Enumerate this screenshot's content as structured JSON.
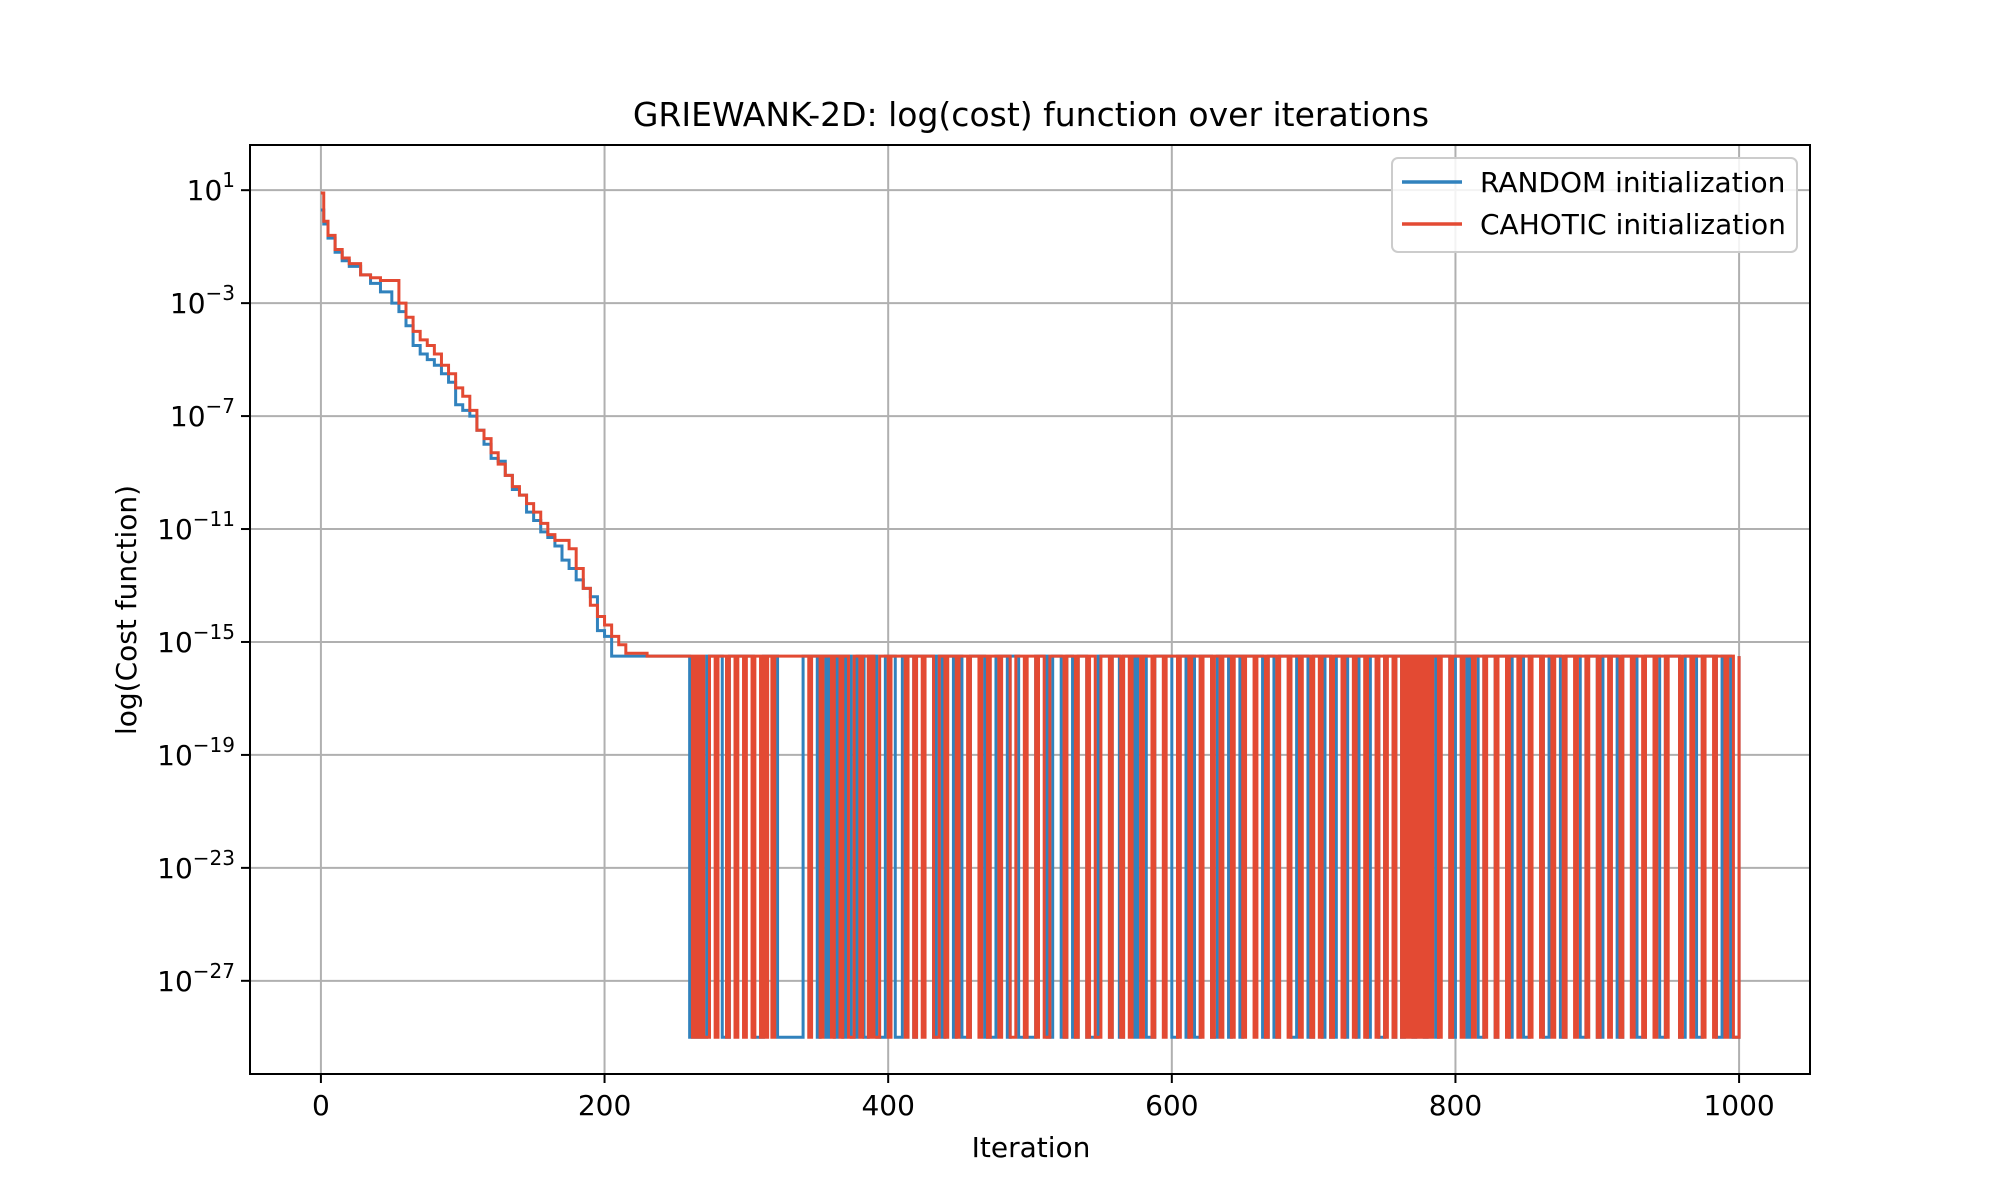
{
  "chart_data": {
    "type": "line",
    "title": "GRIEWANK-2D: log(cost) function over iterations",
    "xlabel": "Iteration",
    "ylabel": "log(Cost function)",
    "xlim": [
      -50,
      1050
    ],
    "ylim_log10": [
      -30.3,
      2.6
    ],
    "yscale": "log",
    "xticks": [
      0,
      200,
      400,
      600,
      800,
      1000
    ],
    "xtick_labels": [
      "0",
      "200",
      "400",
      "600",
      "800",
      "1000"
    ],
    "yticks_exp": [
      1,
      -3,
      -7,
      -11,
      -15,
      -19,
      -23,
      -27
    ],
    "ytick_base": "10",
    "ytick_exponents": [
      "1",
      "−3",
      "−7",
      "−11",
      "−15",
      "−19",
      "−23",
      "−27"
    ],
    "grid": true,
    "legend_position": "top-right",
    "series": [
      {
        "name": "RANDOM initialization",
        "color": "#3182bd",
        "step_values_log10": {
          "x": [
            0,
            2,
            5,
            10,
            15,
            20,
            28,
            35,
            42,
            50,
            55,
            60,
            65,
            70,
            75,
            80,
            85,
            90,
            95,
            100,
            105,
            110,
            115,
            120,
            125,
            130,
            135,
            140,
            145,
            150,
            155,
            160,
            165,
            170,
            175,
            180,
            185,
            190,
            195,
            200,
            205,
            210,
            215,
            220,
            225,
            230,
            235,
            240,
            250,
            258
          ],
          "y": [
            0.3,
            -0.2,
            -0.7,
            -1.2,
            -1.5,
            -1.7,
            -2.0,
            -2.3,
            -2.6,
            -3.0,
            -3.3,
            -3.8,
            -4.5,
            -4.8,
            -5.0,
            -5.2,
            -5.5,
            -5.8,
            -6.6,
            -6.8,
            -7.0,
            -7.5,
            -8.0,
            -8.5,
            -8.6,
            -9.1,
            -9.6,
            -9.8,
            -10.4,
            -10.7,
            -11.1,
            -11.3,
            -11.6,
            -12.1,
            -12.4,
            -12.8,
            -13.1,
            -13.4,
            -14.6,
            -14.8,
            -15.5,
            -15.5,
            -15.5,
            -15.5,
            -15.5,
            -15.5,
            -15.5,
            -15.5,
            -15.5,
            -15.5
          ]
        },
        "high_log10": -15.5,
        "low_log10": -29.0,
        "low_intervals": [
          [
            260,
            272
          ],
          [
            283,
            288
          ],
          [
            305,
            312
          ],
          [
            322,
            340
          ],
          [
            350,
            352
          ],
          [
            356,
            358
          ],
          [
            362,
            364
          ],
          [
            368,
            370
          ],
          [
            374,
            378
          ],
          [
            383,
            386
          ],
          [
            392,
            398
          ],
          [
            405,
            410
          ],
          [
            418,
            420
          ],
          [
            432,
            434
          ],
          [
            438,
            440
          ],
          [
            446,
            448
          ],
          [
            452,
            458
          ],
          [
            468,
            476
          ],
          [
            484,
            486
          ],
          [
            492,
            504
          ],
          [
            512,
            516
          ],
          [
            522,
            526
          ],
          [
            530,
            534
          ],
          [
            540,
            548
          ],
          [
            556,
            558
          ],
          [
            563,
            566
          ],
          [
            574,
            576
          ],
          [
            582,
            588
          ],
          [
            600,
            604
          ],
          [
            610,
            612
          ],
          [
            616,
            620
          ],
          [
            628,
            632
          ],
          [
            640,
            642
          ],
          [
            648,
            650
          ],
          [
            664,
            668
          ],
          [
            672,
            676
          ],
          [
            684,
            688
          ],
          [
            696,
            700
          ],
          [
            706,
            708
          ],
          [
            712,
            716
          ],
          [
            722,
            724
          ],
          [
            730,
            732
          ],
          [
            738,
            740
          ],
          [
            746,
            750
          ],
          [
            756,
            758
          ],
          [
            762,
            764
          ],
          [
            770,
            772
          ],
          [
            778,
            780
          ],
          [
            786,
            788
          ],
          [
            796,
            800
          ],
          [
            808,
            810
          ],
          [
            816,
            820
          ],
          [
            828,
            830
          ],
          [
            838,
            840
          ],
          [
            848,
            852
          ],
          [
            862,
            866
          ],
          [
            874,
            878
          ],
          [
            888,
            892
          ],
          [
            900,
            904
          ],
          [
            914,
            918
          ],
          [
            928,
            934
          ],
          [
            944,
            948
          ],
          [
            958,
            962
          ],
          [
            970,
            974
          ],
          [
            984,
            988
          ],
          [
            994,
            1000
          ]
        ]
      },
      {
        "name": "CAHOTIC initialization",
        "color": "#e34a33",
        "step_values_log10": {
          "x": [
            0,
            2,
            5,
            10,
            15,
            20,
            28,
            35,
            42,
            50,
            55,
            60,
            65,
            70,
            75,
            80,
            85,
            90,
            95,
            100,
            105,
            110,
            115,
            120,
            125,
            130,
            135,
            140,
            145,
            150,
            155,
            160,
            165,
            170,
            175,
            180,
            185,
            190,
            195,
            200,
            205,
            210,
            215,
            220,
            225,
            230,
            235
          ],
          "y": [
            0.9,
            -0.1,
            -0.6,
            -1.1,
            -1.4,
            -1.6,
            -2.0,
            -2.1,
            -2.2,
            -2.2,
            -3.0,
            -3.5,
            -4.0,
            -4.3,
            -4.5,
            -4.8,
            -5.2,
            -5.5,
            -6.0,
            -6.3,
            -6.8,
            -7.5,
            -7.8,
            -8.3,
            -8.7,
            -9.1,
            -9.5,
            -9.8,
            -10.1,
            -10.4,
            -10.8,
            -11.2,
            -11.4,
            -11.4,
            -11.7,
            -12.4,
            -13.1,
            -13.7,
            -14.1,
            -14.4,
            -14.8,
            -15.1,
            -15.4,
            -15.4,
            -15.4,
            -15.5,
            -15.5
          ]
        },
        "high_log10": -15.5,
        "low_log10": -29.0,
        "low_intervals": [
          [
            262,
            264
          ],
          [
            266,
            268
          ],
          [
            270,
            274
          ],
          [
            278,
            280
          ],
          [
            286,
            288
          ],
          [
            292,
            294
          ],
          [
            298,
            300
          ],
          [
            304,
            306
          ],
          [
            310,
            312
          ],
          [
            313,
            315
          ],
          [
            318,
            320
          ],
          [
            344,
            346
          ],
          [
            352,
            354
          ],
          [
            360,
            362
          ],
          [
            366,
            368
          ],
          [
            372,
            376
          ],
          [
            380,
            382
          ],
          [
            386,
            388
          ],
          [
            390,
            394
          ],
          [
            400,
            402
          ],
          [
            412,
            414
          ],
          [
            418,
            420
          ],
          [
            424,
            426
          ],
          [
            432,
            436
          ],
          [
            440,
            442
          ],
          [
            448,
            450
          ],
          [
            456,
            458
          ],
          [
            464,
            466
          ],
          [
            470,
            472
          ],
          [
            478,
            480
          ],
          [
            486,
            490
          ],
          [
            496,
            498
          ],
          [
            504,
            506
          ],
          [
            510,
            514
          ],
          [
            524,
            526
          ],
          [
            532,
            534
          ],
          [
            540,
            542
          ],
          [
            546,
            550
          ],
          [
            556,
            558
          ],
          [
            564,
            566
          ],
          [
            570,
            572
          ],
          [
            578,
            580
          ],
          [
            586,
            588
          ],
          [
            594,
            596
          ],
          [
            604,
            606
          ],
          [
            612,
            614
          ],
          [
            620,
            622
          ],
          [
            628,
            630
          ],
          [
            634,
            636
          ],
          [
            642,
            644
          ],
          [
            650,
            652
          ],
          [
            658,
            660
          ],
          [
            666,
            668
          ],
          [
            674,
            676
          ],
          [
            682,
            684
          ],
          [
            690,
            692
          ],
          [
            698,
            700
          ],
          [
            704,
            706
          ],
          [
            712,
            714
          ],
          [
            720,
            722
          ],
          [
            728,
            730
          ],
          [
            736,
            738
          ],
          [
            744,
            746
          ],
          [
            750,
            752
          ],
          [
            756,
            758
          ],
          [
            762,
            764
          ],
          [
            766,
            768
          ],
          [
            770,
            772
          ],
          [
            774,
            776
          ],
          [
            778,
            780
          ],
          [
            782,
            784
          ],
          [
            788,
            790
          ],
          [
            796,
            798
          ],
          [
            804,
            806
          ],
          [
            812,
            814
          ],
          [
            820,
            822
          ],
          [
            828,
            830
          ],
          [
            836,
            838
          ],
          [
            844,
            846
          ],
          [
            852,
            854
          ],
          [
            860,
            862
          ],
          [
            868,
            870
          ],
          [
            876,
            878
          ],
          [
            884,
            886
          ],
          [
            892,
            894
          ],
          [
            900,
            902
          ],
          [
            908,
            910
          ],
          [
            916,
            918
          ],
          [
            924,
            926
          ],
          [
            932,
            934
          ],
          [
            940,
            942
          ],
          [
            948,
            950
          ],
          [
            958,
            960
          ],
          [
            966,
            968
          ],
          [
            974,
            976
          ],
          [
            982,
            984
          ],
          [
            990,
            992
          ],
          [
            996,
            1000
          ]
        ]
      }
    ]
  }
}
